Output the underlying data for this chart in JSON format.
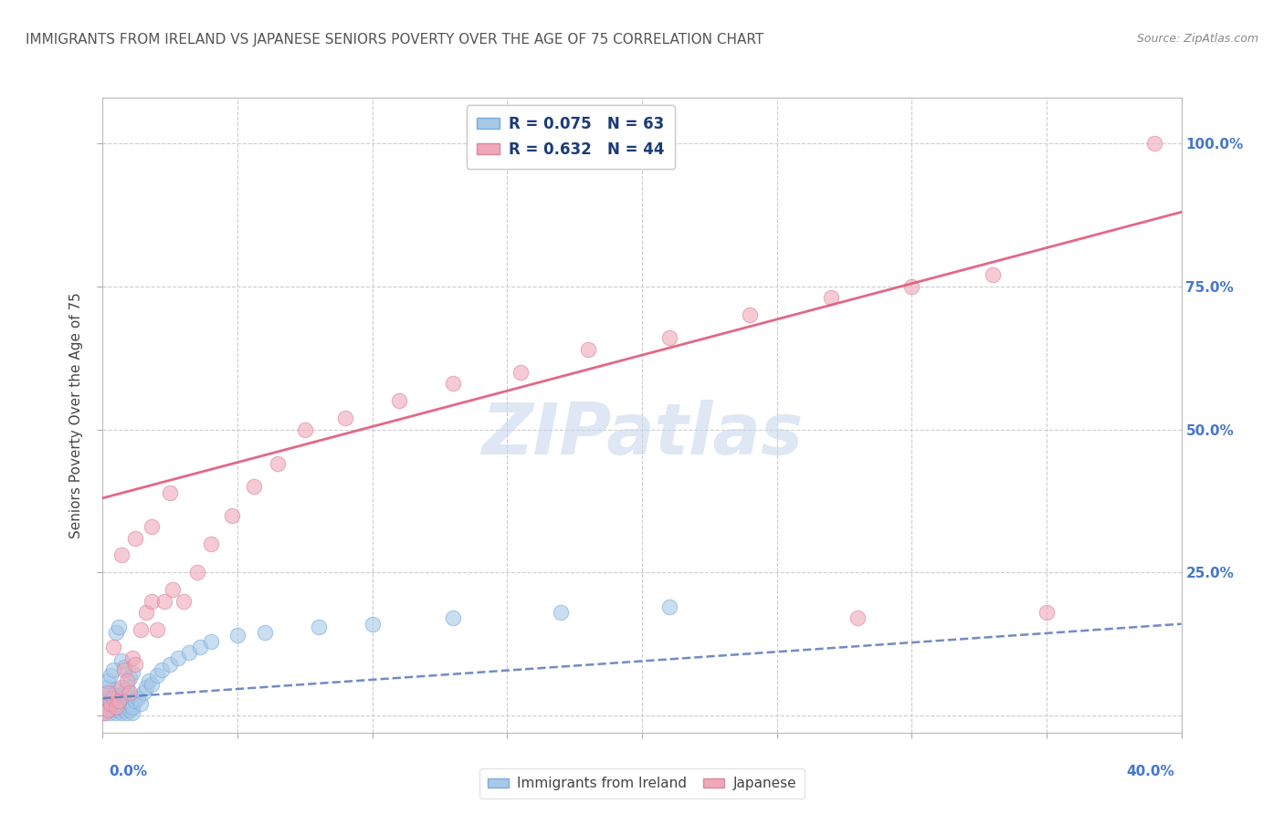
{
  "title": "IMMIGRANTS FROM IRELAND VS JAPANESE SENIORS POVERTY OVER THE AGE OF 75 CORRELATION CHART",
  "source": "Source: ZipAtlas.com",
  "ylabel": "Seniors Poverty Over the Age of 75",
  "xlim": [
    0.0,
    0.4
  ],
  "ylim": [
    -0.03,
    1.08
  ],
  "yticks": [
    0.0,
    0.25,
    0.5,
    0.75,
    1.0
  ],
  "xticks": [
    0.0,
    0.05,
    0.1,
    0.15,
    0.2,
    0.25,
    0.3,
    0.35,
    0.4
  ],
  "legend_R1": "R = 0.075",
  "legend_N1": "N = 63",
  "legend_R2": "R = 0.632",
  "legend_N2": "N = 44",
  "blue_color": "#a8c8e8",
  "pink_color": "#f0a8b8",
  "blue_line_color": "#5878b8",
  "pink_line_color": "#e05878",
  "watermark_color": "#c8d8ec",
  "blue_scatter_x": [
    0.001,
    0.001,
    0.002,
    0.002,
    0.002,
    0.003,
    0.003,
    0.003,
    0.003,
    0.004,
    0.004,
    0.004,
    0.005,
    0.005,
    0.005,
    0.005,
    0.006,
    0.006,
    0.006,
    0.007,
    0.007,
    0.007,
    0.008,
    0.008,
    0.008,
    0.009,
    0.009,
    0.01,
    0.01,
    0.01,
    0.011,
    0.011,
    0.012,
    0.013,
    0.014,
    0.015,
    0.016,
    0.017,
    0.018,
    0.02,
    0.022,
    0.025,
    0.028,
    0.032,
    0.036,
    0.04,
    0.05,
    0.06,
    0.08,
    0.1,
    0.13,
    0.17,
    0.21,
    0.005,
    0.006,
    0.007,
    0.008,
    0.002,
    0.003,
    0.004,
    0.009,
    0.01,
    0.011
  ],
  "blue_scatter_y": [
    0.005,
    0.02,
    0.01,
    0.03,
    0.05,
    0.005,
    0.015,
    0.025,
    0.04,
    0.01,
    0.02,
    0.035,
    0.005,
    0.015,
    0.025,
    0.045,
    0.01,
    0.02,
    0.035,
    0.005,
    0.015,
    0.03,
    0.01,
    0.02,
    0.04,
    0.005,
    0.025,
    0.01,
    0.02,
    0.035,
    0.005,
    0.015,
    0.025,
    0.03,
    0.02,
    0.04,
    0.05,
    0.06,
    0.055,
    0.07,
    0.08,
    0.09,
    0.1,
    0.11,
    0.12,
    0.13,
    0.14,
    0.145,
    0.155,
    0.16,
    0.17,
    0.18,
    0.19,
    0.145,
    0.155,
    0.095,
    0.085,
    0.06,
    0.07,
    0.08,
    0.05,
    0.065,
    0.075
  ],
  "pink_scatter_x": [
    0.001,
    0.002,
    0.003,
    0.004,
    0.005,
    0.006,
    0.007,
    0.008,
    0.009,
    0.01,
    0.011,
    0.012,
    0.014,
    0.016,
    0.018,
    0.02,
    0.023,
    0.026,
    0.03,
    0.035,
    0.04,
    0.048,
    0.056,
    0.065,
    0.075,
    0.09,
    0.11,
    0.13,
    0.155,
    0.18,
    0.21,
    0.24,
    0.27,
    0.3,
    0.33,
    0.002,
    0.004,
    0.007,
    0.012,
    0.018,
    0.025,
    0.39,
    0.35,
    0.28
  ],
  "pink_scatter_y": [
    0.005,
    0.01,
    0.02,
    0.03,
    0.015,
    0.025,
    0.05,
    0.08,
    0.06,
    0.04,
    0.1,
    0.09,
    0.15,
    0.18,
    0.2,
    0.15,
    0.2,
    0.22,
    0.2,
    0.25,
    0.3,
    0.35,
    0.4,
    0.44,
    0.5,
    0.52,
    0.55,
    0.58,
    0.6,
    0.64,
    0.66,
    0.7,
    0.73,
    0.75,
    0.77,
    0.04,
    0.12,
    0.28,
    0.31,
    0.33,
    0.39,
    1.0,
    0.18,
    0.17
  ],
  "blue_line_x": [
    0.0,
    0.4
  ],
  "blue_line_y": [
    0.03,
    0.16
  ],
  "pink_line_x": [
    0.0,
    0.4
  ],
  "pink_line_y": [
    0.38,
    0.88
  ]
}
